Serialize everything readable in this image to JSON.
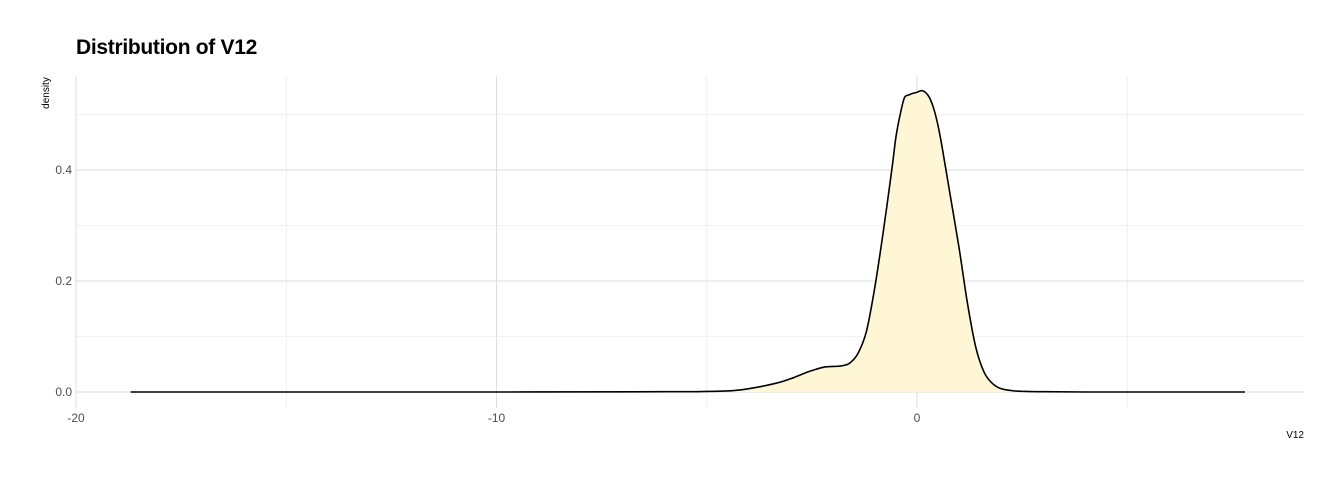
{
  "chart_data": {
    "type": "area",
    "title": "Distribution of V12",
    "xlabel": "V12",
    "ylabel": "density",
    "xlim": [
      -20,
      9.2
    ],
    "ylim": [
      0,
      0.57
    ],
    "x_ticks": [
      -20,
      -10,
      0
    ],
    "y_ticks": [
      0.0,
      0.2,
      0.4
    ],
    "y_tick_labels": [
      "0.0",
      "0.2",
      "0.4"
    ],
    "x_tick_labels": [
      "-20",
      "-10",
      "0"
    ],
    "grid": true,
    "fill_color": "#fff6d5",
    "line_color": "#000000",
    "series": [
      {
        "x": [
          -18.7,
          -15,
          -10,
          -6,
          -5,
          -4.5,
          -4.3,
          -4.0,
          -3.7,
          -3.4,
          -3.2,
          -3.0,
          -2.8,
          -2.6,
          -2.4,
          -2.2,
          -2.0,
          -1.8,
          -1.6,
          -1.4,
          -1.2,
          -1.0,
          -0.8,
          -0.6,
          -0.5,
          -0.4,
          -0.3,
          -0.2,
          -0.1,
          0.0,
          0.1,
          0.2,
          0.3,
          0.4,
          0.5,
          0.6,
          0.8,
          1.0,
          1.2,
          1.4,
          1.6,
          1.8,
          2.0,
          2.3,
          2.6,
          3.0,
          4.0,
          6.0,
          7.8
        ],
        "y": [
          0.0,
          0.0,
          0.0,
          0.0005,
          0.001,
          0.002,
          0.003,
          0.006,
          0.01,
          0.015,
          0.019,
          0.024,
          0.03,
          0.036,
          0.041,
          0.045,
          0.046,
          0.047,
          0.052,
          0.07,
          0.11,
          0.19,
          0.29,
          0.4,
          0.46,
          0.5,
          0.53,
          0.535,
          0.538,
          0.54,
          0.543,
          0.54,
          0.53,
          0.51,
          0.48,
          0.44,
          0.35,
          0.26,
          0.16,
          0.08,
          0.035,
          0.015,
          0.006,
          0.002,
          0.001,
          0.0005,
          0.0,
          0.0,
          0.0
        ]
      }
    ]
  }
}
